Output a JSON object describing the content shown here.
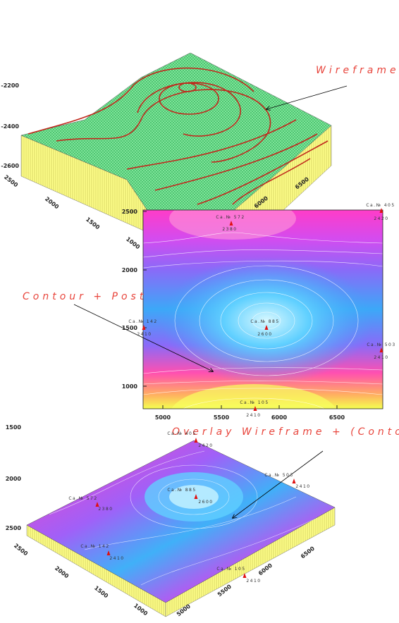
{
  "wireframe": {
    "label": "Wireframe",
    "z_ticks": [
      "-2200",
      "-2400",
      "-2600"
    ],
    "y_ticks": [
      "2500",
      "2000",
      "1500",
      "1000"
    ],
    "x_ticks": [
      "6000",
      "6500"
    ]
  },
  "contour_post": {
    "label": "Contour + Post",
    "x_ticks": [
      "5000",
      "5500",
      "6000",
      "6500"
    ],
    "y_ticks": [
      "2500",
      "2000",
      "1500",
      "1000"
    ],
    "posts": [
      {
        "name": "Ca.№ 572",
        "value": "2380"
      },
      {
        "name": "Ca.№ 405",
        "value": "2420"
      },
      {
        "name": "Ca.№ 142",
        "value": "2410"
      },
      {
        "name": "Ca.№ 885",
        "value": "2600"
      },
      {
        "name": "Ca.№ 503",
        "value": "2410"
      },
      {
        "name": "Ca.№ 105",
        "value": "2410"
      }
    ]
  },
  "overlay": {
    "label": "Overlay Wireframe + (Contour + Post)",
    "z_ticks": [
      "1500",
      "2000",
      "2500"
    ],
    "y_ticks": [
      "2500",
      "2000",
      "1500",
      "1000"
    ],
    "x_ticks": [
      "5000",
      "5500",
      "6000",
      "6500"
    ],
    "posts": [
      {
        "name": "Ca.№ 572",
        "value": "2380"
      },
      {
        "name": "Ca.№ 405",
        "value": "2420"
      },
      {
        "name": "Ca.№ 885",
        "value": "2600"
      },
      {
        "name": "Ca.№ 142",
        "value": "2410"
      },
      {
        "name": "Ca.№ 503",
        "value": "2410"
      },
      {
        "name": "Ca.№ 105",
        "value": "2410"
      }
    ]
  }
}
